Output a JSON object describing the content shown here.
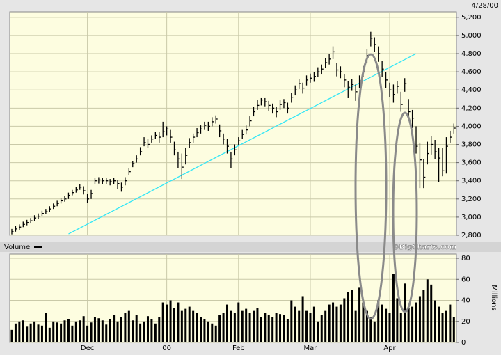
{
  "chart_data": [
    {
      "type": "ohlc",
      "date": "4/28/00",
      "color": "#000000",
      "high": [
        2870,
        2900,
        2920,
        2950,
        2970,
        2990,
        3020,
        3040,
        3070,
        3090,
        3120,
        3150,
        3180,
        3210,
        3230,
        3270,
        3300,
        3330,
        3360,
        3340,
        3260,
        3300,
        3430,
        3440,
        3430,
        3430,
        3420,
        3430,
        3410,
        3380,
        3440,
        3540,
        3620,
        3680,
        3770,
        3880,
        3860,
        3900,
        3940,
        3940,
        4050,
        4000,
        3960,
        3830,
        3720,
        3700,
        3760,
        3870,
        3920,
        3980,
        4010,
        4050,
        4050,
        4100,
        4120,
        4020,
        3920,
        3860,
        3720,
        3800,
        3880,
        3960,
        4010,
        4110,
        4210,
        4290,
        4310,
        4310,
        4280,
        4250,
        4210,
        4290,
        4300,
        4260,
        4370,
        4450,
        4520,
        4480,
        4560,
        4580,
        4600,
        4650,
        4680,
        4750,
        4800,
        4880,
        4700,
        4660,
        4570,
        4500,
        4520,
        4460,
        4560,
        4660,
        4850,
        5040,
        4980,
        4880,
        4720,
        4600,
        4480,
        4460,
        4500,
        4380,
        4530,
        4300,
        4180,
        4000,
        3820,
        3640,
        3830,
        3890,
        3850,
        3760,
        3760,
        3880,
        3950,
        4030
      ],
      "low": [
        2810,
        2840,
        2860,
        2890,
        2910,
        2930,
        2960,
        2980,
        3010,
        3030,
        3060,
        3090,
        3120,
        3150,
        3170,
        3200,
        3240,
        3270,
        3300,
        3250,
        3160,
        3200,
        3360,
        3370,
        3360,
        3360,
        3350,
        3360,
        3310,
        3280,
        3350,
        3460,
        3550,
        3600,
        3680,
        3780,
        3760,
        3820,
        3860,
        3820,
        3880,
        3900,
        3820,
        3680,
        3540,
        3420,
        3580,
        3760,
        3820,
        3880,
        3920,
        3960,
        3950,
        4000,
        4030,
        3880,
        3800,
        3700,
        3540,
        3680,
        3790,
        3860,
        3910,
        4000,
        4110,
        4180,
        4230,
        4220,
        4170,
        4140,
        4100,
        4180,
        4200,
        4140,
        4260,
        4340,
        4410,
        4360,
        4450,
        4480,
        4490,
        4540,
        4570,
        4640,
        4680,
        4740,
        4550,
        4530,
        4430,
        4310,
        4390,
        4280,
        4420,
        4540,
        4700,
        4880,
        4820,
        4710,
        4540,
        4420,
        4320,
        4260,
        4360,
        4160,
        4380,
        4060,
        3980,
        3700,
        3320,
        3320,
        3580,
        3690,
        3640,
        3390,
        3450,
        3480,
        3820,
        3920
      ],
      "close": [
        2840,
        2870,
        2890,
        2920,
        2940,
        2960,
        2990,
        3010,
        3040,
        3060,
        3090,
        3120,
        3150,
        3180,
        3200,
        3240,
        3270,
        3300,
        3330,
        3290,
        3200,
        3260,
        3400,
        3410,
        3400,
        3400,
        3390,
        3400,
        3370,
        3330,
        3400,
        3500,
        3590,
        3640,
        3720,
        3820,
        3800,
        3860,
        3900,
        3880,
        3940,
        3970,
        3880,
        3740,
        3640,
        3550,
        3680,
        3820,
        3880,
        3930,
        3970,
        4010,
        4000,
        4050,
        4080,
        3950,
        3860,
        3780,
        3640,
        3740,
        3840,
        3910,
        3960,
        4060,
        4160,
        4230,
        4290,
        4270,
        4230,
        4200,
        4160,
        4240,
        4260,
        4200,
        4320,
        4400,
        4470,
        4420,
        4510,
        4530,
        4550,
        4600,
        4630,
        4700,
        4740,
        4820,
        4620,
        4600,
        4510,
        4430,
        4460,
        4380,
        4500,
        4600,
        4780,
        4970,
        4900,
        4800,
        4630,
        4510,
        4400,
        4350,
        4440,
        4240,
        4470,
        4160,
        4090,
        3780,
        3630,
        3440,
        3700,
        3800,
        3720,
        3650,
        3510,
        3780,
        3880,
        3980
      ],
      "ylim": [
        2800,
        5260
      ],
      "yticks": [
        {
          "value": 2800,
          "label": "2,800"
        },
        {
          "value": 3000,
          "label": "3,000"
        },
        {
          "value": 3200,
          "label": "3,200"
        },
        {
          "value": 3400,
          "label": "3,400"
        },
        {
          "value": 3600,
          "label": "3,600"
        },
        {
          "value": 3800,
          "label": "3,800"
        },
        {
          "value": 4000,
          "label": "4,000"
        },
        {
          "value": 4200,
          "label": "4,200"
        },
        {
          "value": 4400,
          "label": "4,400"
        },
        {
          "value": 4600,
          "label": "4,600"
        },
        {
          "value": 4800,
          "label": "4,800"
        },
        {
          "value": 5000,
          "label": "5,000"
        },
        {
          "value": 5200,
          "label": "5,200"
        }
      ],
      "grid": true,
      "trendline": {
        "color": "#33e6f6",
        "start": [
          15,
          2815
        ],
        "end": [
          107,
          4800
        ]
      }
    },
    {
      "type": "bar",
      "legend": "Volume",
      "credit": "©BigCharts.com",
      "ylabel": "Millions",
      "color": "#000000",
      "categories": [
        null,
        null,
        null,
        null,
        null,
        null,
        null,
        null,
        null,
        null,
        null,
        null,
        null,
        null,
        null,
        null,
        null,
        null,
        null,
        null,
        "Dec",
        null,
        null,
        null,
        null,
        null,
        null,
        null,
        null,
        null,
        null,
        null,
        null,
        null,
        null,
        null,
        null,
        null,
        null,
        null,
        null,
        "00",
        null,
        null,
        null,
        null,
        null,
        null,
        null,
        null,
        null,
        null,
        null,
        null,
        null,
        null,
        null,
        null,
        null,
        null,
        "Feb",
        null,
        null,
        null,
        null,
        null,
        null,
        null,
        null,
        null,
        null,
        null,
        null,
        null,
        null,
        null,
        null,
        null,
        null,
        "Mar",
        null,
        null,
        null,
        null,
        null,
        null,
        null,
        null,
        null,
        null,
        null,
        null,
        null,
        null,
        null,
        null,
        null,
        null,
        null,
        null,
        "Apr",
        null,
        null,
        null,
        null,
        null,
        null,
        null,
        null,
        null,
        null,
        null,
        null,
        null,
        null,
        null,
        null,
        null
      ],
      "values": [
        12,
        18,
        20,
        21,
        15,
        18,
        20,
        17,
        16,
        28,
        14,
        20,
        19,
        18,
        21,
        22,
        16,
        20,
        21,
        25,
        16,
        19,
        24,
        23,
        21,
        17,
        22,
        26,
        20,
        24,
        28,
        30,
        21,
        26,
        18,
        20,
        25,
        22,
        18,
        24,
        38,
        36,
        40,
        33,
        38,
        30,
        32,
        34,
        30,
        28,
        24,
        22,
        20,
        18,
        16,
        26,
        28,
        36,
        30,
        28,
        38,
        30,
        32,
        28,
        30,
        33,
        24,
        28,
        26,
        24,
        28,
        27,
        26,
        22,
        40,
        34,
        30,
        44,
        30,
        28,
        34,
        20,
        26,
        30,
        36,
        38,
        34,
        36,
        42,
        48,
        50,
        30,
        52,
        38,
        30,
        24,
        20,
        40,
        36,
        32,
        28,
        65,
        42,
        28,
        56,
        33,
        34,
        38,
        44,
        50,
        60,
        55,
        40,
        34,
        28,
        30,
        36,
        24
      ],
      "ylim": [
        0,
        84
      ],
      "yticks": [
        0,
        20,
        40,
        60,
        80
      ],
      "grid": true
    }
  ]
}
